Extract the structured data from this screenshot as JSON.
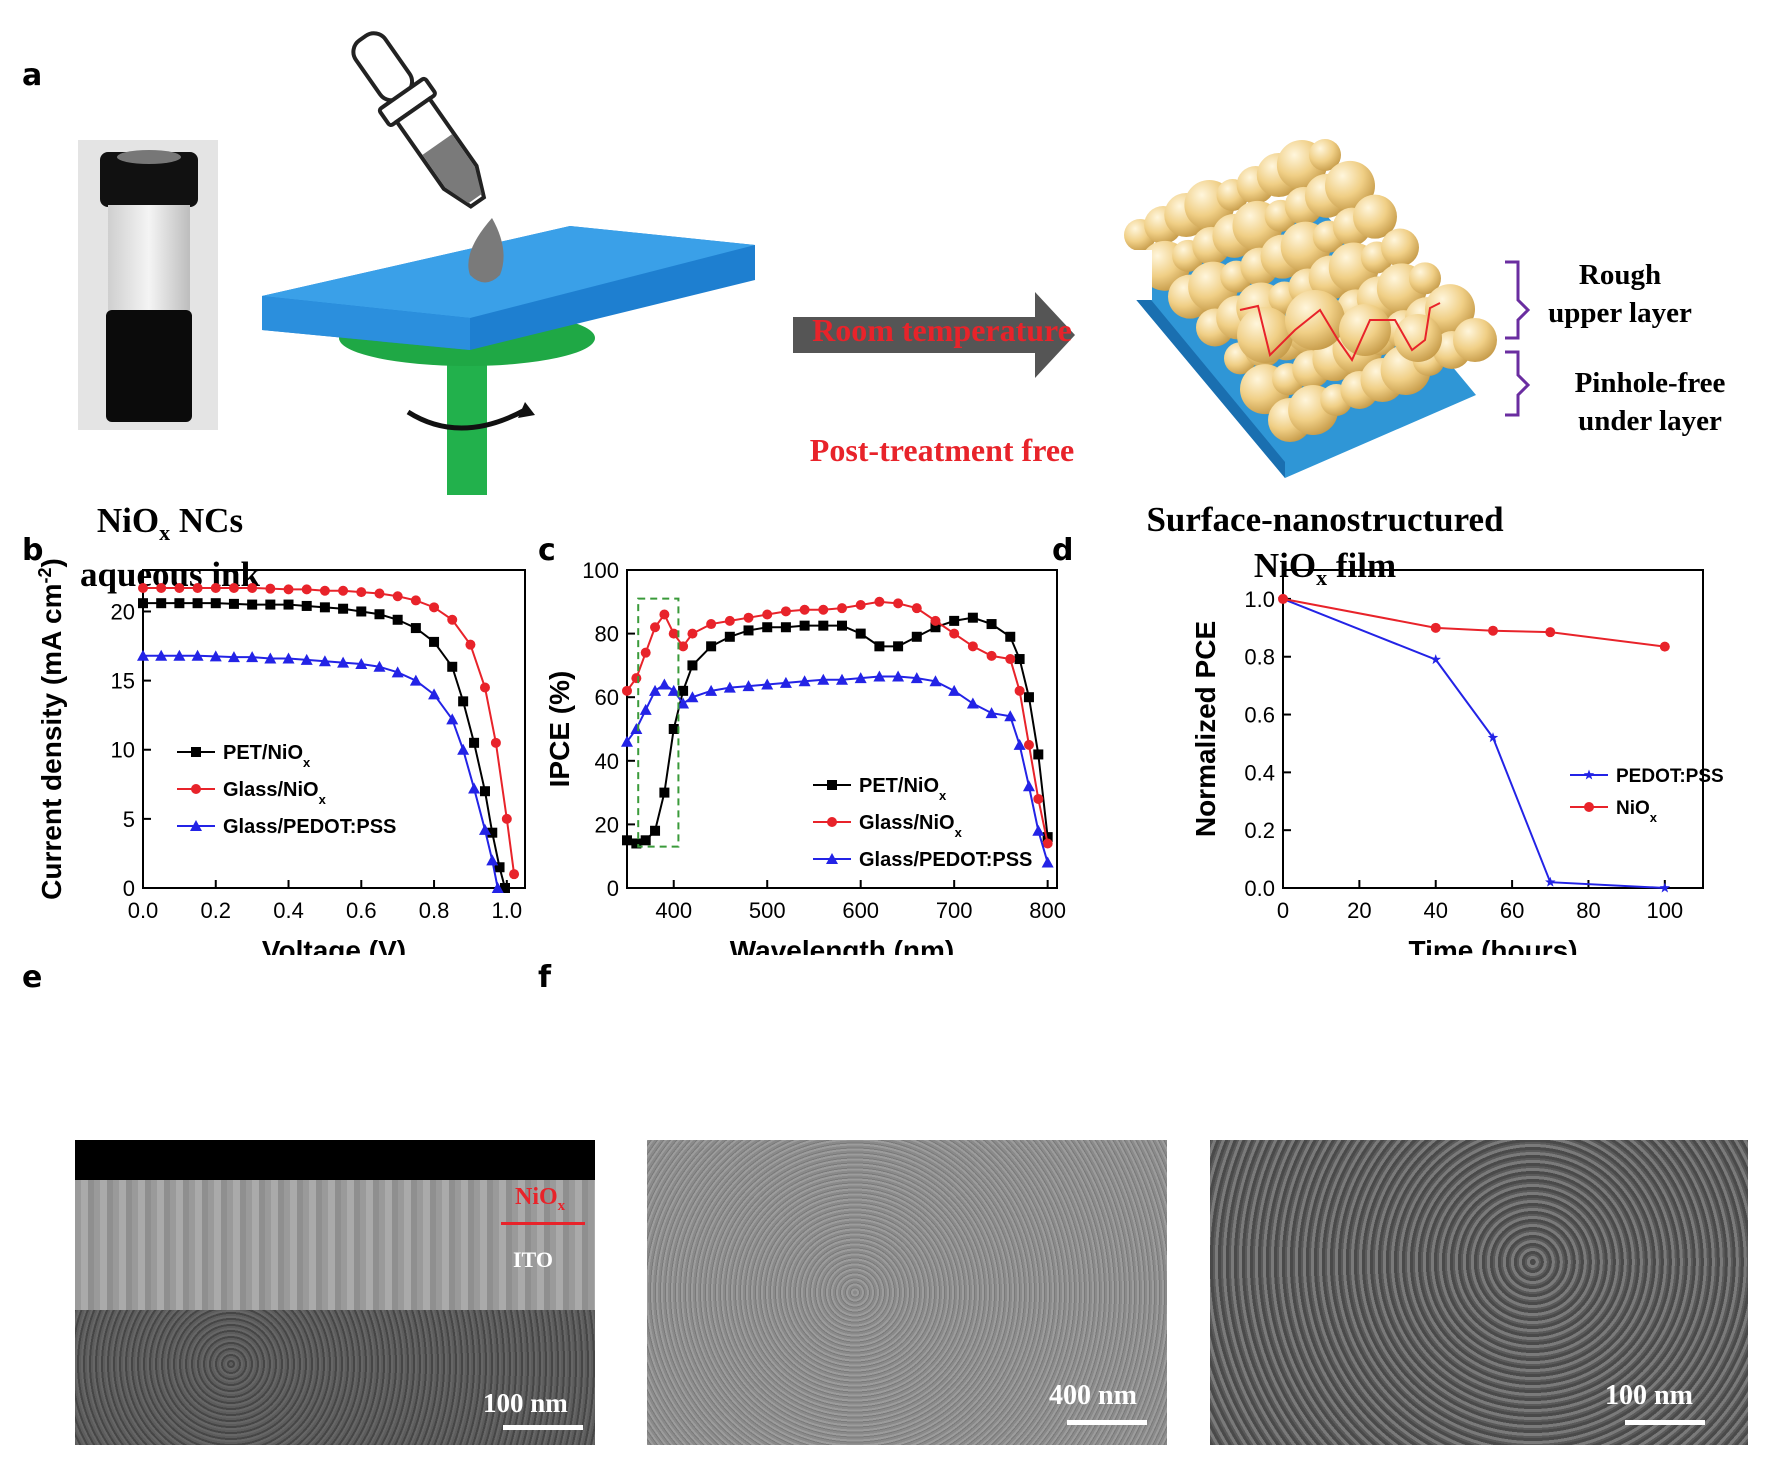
{
  "panels": {
    "a": "a",
    "b": "b",
    "c": "c",
    "d": "d",
    "e": "e",
    "f": "f"
  },
  "schematic": {
    "ink_label": [
      "NiO",
      "x",
      " NCs",
      "aqueous ink"
    ],
    "process_top": "Room temperature",
    "process_bottom": "Post-treatment free",
    "film_label": [
      "Surface-nanostructured",
      "NiO",
      "x",
      " film"
    ],
    "rough": [
      "Rough",
      "upper layer"
    ],
    "pinhole": [
      "Pinhole-free",
      "under layer"
    ]
  },
  "sem": {
    "e_scale": "100 nm",
    "e_nio": "NiO",
    "e_nio_sub": "x",
    "e_ito": "ITO",
    "f1_scale": "400 nm",
    "f2_scale": "100 nm"
  },
  "colors": {
    "black": "#000000",
    "red": "#e8232a",
    "blue": "#2323e6",
    "green": "#3a9a3a",
    "substrate": "#3aa0e8",
    "spinner": "#22c55e"
  },
  "chart_data": [
    {
      "type": "line",
      "panel": "b",
      "xlabel": "Voltage (V)",
      "ylabel": "Current density (mA cm-2)",
      "xlim": [
        0.0,
        1.05
      ],
      "ylim": [
        0,
        23
      ],
      "xticks": [
        "0.0",
        "0.2",
        "0.4",
        "0.6",
        "0.8",
        "1.0"
      ],
      "yticks": [
        "0",
        "5",
        "10",
        "15",
        "20"
      ],
      "series": [
        {
          "name": "PET/NiOx",
          "color": "#000000",
          "marker": "square",
          "x": [
            0,
            0.05,
            0.1,
            0.15,
            0.2,
            0.25,
            0.3,
            0.35,
            0.4,
            0.45,
            0.5,
            0.55,
            0.6,
            0.65,
            0.7,
            0.75,
            0.8,
            0.85,
            0.88,
            0.91,
            0.94,
            0.96,
            0.98,
            0.995
          ],
          "y": [
            20.6,
            20.6,
            20.6,
            20.6,
            20.6,
            20.55,
            20.5,
            20.5,
            20.5,
            20.4,
            20.3,
            20.2,
            20.0,
            19.8,
            19.4,
            18.8,
            17.8,
            16.0,
            13.5,
            10.5,
            7.0,
            4.0,
            1.5,
            0
          ]
        },
        {
          "name": "Glass/NiOx",
          "color": "#e8232a",
          "marker": "circle",
          "x": [
            0,
            0.05,
            0.1,
            0.15,
            0.2,
            0.25,
            0.3,
            0.35,
            0.4,
            0.45,
            0.5,
            0.55,
            0.6,
            0.65,
            0.7,
            0.75,
            0.8,
            0.85,
            0.9,
            0.94,
            0.97,
            1.0,
            1.02
          ],
          "y": [
            21.7,
            21.7,
            21.7,
            21.7,
            21.7,
            21.7,
            21.7,
            21.65,
            21.6,
            21.6,
            21.5,
            21.5,
            21.4,
            21.3,
            21.1,
            20.8,
            20.3,
            19.4,
            17.6,
            14.5,
            10.5,
            5.0,
            1.0
          ]
        },
        {
          "name": "Glass/PEDOT:PSS",
          "color": "#2323e6",
          "marker": "triangle",
          "x": [
            0,
            0.05,
            0.1,
            0.15,
            0.2,
            0.25,
            0.3,
            0.35,
            0.4,
            0.45,
            0.5,
            0.55,
            0.6,
            0.65,
            0.7,
            0.75,
            0.8,
            0.85,
            0.88,
            0.91,
            0.94,
            0.96,
            0.975
          ],
          "y": [
            16.8,
            16.8,
            16.8,
            16.8,
            16.75,
            16.7,
            16.7,
            16.6,
            16.6,
            16.5,
            16.4,
            16.3,
            16.2,
            16.0,
            15.6,
            15.0,
            14.0,
            12.2,
            10.0,
            7.2,
            4.2,
            2.0,
            0
          ]
        }
      ],
      "legend": "middle-left"
    },
    {
      "type": "line",
      "panel": "c",
      "xlabel": "Wavelength (nm)",
      "ylabel": "IPCE (%)",
      "xlim": [
        350,
        810
      ],
      "ylim": [
        0,
        100
      ],
      "xticks": [
        "400",
        "500",
        "600",
        "700",
        "800"
      ],
      "yticks": [
        "0",
        "20",
        "40",
        "60",
        "80",
        "100"
      ],
      "series": [
        {
          "name": "PET/NiOx",
          "color": "#000000",
          "marker": "square",
          "x": [
            350,
            360,
            370,
            380,
            390,
            400,
            410,
            420,
            440,
            460,
            480,
            500,
            520,
            540,
            560,
            580,
            600,
            620,
            640,
            660,
            680,
            700,
            720,
            740,
            760,
            770,
            780,
            790,
            800
          ],
          "y": [
            15,
            14,
            15,
            18,
            30,
            50,
            62,
            70,
            76,
            79,
            81,
            82,
            82,
            82.5,
            82.5,
            82.5,
            80,
            76,
            76,
            79,
            82,
            84,
            85,
            83,
            79,
            72,
            60,
            42,
            16
          ]
        },
        {
          "name": "Glass/NiOx",
          "color": "#e8232a",
          "marker": "circle",
          "x": [
            350,
            360,
            370,
            380,
            390,
            400,
            410,
            420,
            440,
            460,
            480,
            500,
            520,
            540,
            560,
            580,
            600,
            620,
            640,
            660,
            680,
            700,
            720,
            740,
            760,
            770,
            780,
            790,
            800
          ],
          "y": [
            62,
            66,
            74,
            82,
            86,
            80,
            76,
            80,
            83,
            84,
            85,
            86,
            87,
            87.5,
            87.5,
            88,
            89,
            90,
            89.5,
            88,
            84,
            80,
            76,
            73,
            72,
            62,
            45,
            28,
            14
          ]
        },
        {
          "name": "Glass/PEDOT:PSS",
          "color": "#2323e6",
          "marker": "triangle",
          "x": [
            350,
            360,
            370,
            380,
            390,
            400,
            410,
            420,
            440,
            460,
            480,
            500,
            520,
            540,
            560,
            580,
            600,
            620,
            640,
            660,
            680,
            700,
            720,
            740,
            760,
            770,
            780,
            790,
            800
          ],
          "y": [
            46,
            50,
            56,
            62,
            64,
            62,
            58,
            60,
            62,
            63,
            63.5,
            64,
            64.5,
            65,
            65.5,
            65.5,
            66,
            66.5,
            66.5,
            66,
            65,
            62,
            58,
            55,
            54,
            45,
            32,
            18,
            8
          ]
        }
      ],
      "annotation": "dashed box 360-405 nm",
      "legend": "lower-middle"
    },
    {
      "type": "line",
      "panel": "d",
      "xlabel": "Time (hours)",
      "ylabel": "Normalized PCE",
      "xlim": [
        0,
        110
      ],
      "ylim": [
        0,
        1.1
      ],
      "xticks": [
        "0",
        "20",
        "40",
        "60",
        "80",
        "100"
      ],
      "yticks": [
        "0.0",
        "0.2",
        "0.4",
        "0.6",
        "0.8",
        "1.0"
      ],
      "series": [
        {
          "name": "PEDOT:PSS",
          "color": "#2323e6",
          "marker": "star",
          "x": [
            0,
            40,
            55,
            70,
            100
          ],
          "y": [
            1.0,
            0.79,
            0.52,
            0.02,
            0.0
          ]
        },
        {
          "name": "NiOx",
          "color": "#e8232a",
          "marker": "circle",
          "x": [
            0,
            40,
            55,
            70,
            100
          ],
          "y": [
            1.0,
            0.9,
            0.89,
            0.885,
            0.835
          ]
        }
      ],
      "legend": "middle-right"
    }
  ]
}
